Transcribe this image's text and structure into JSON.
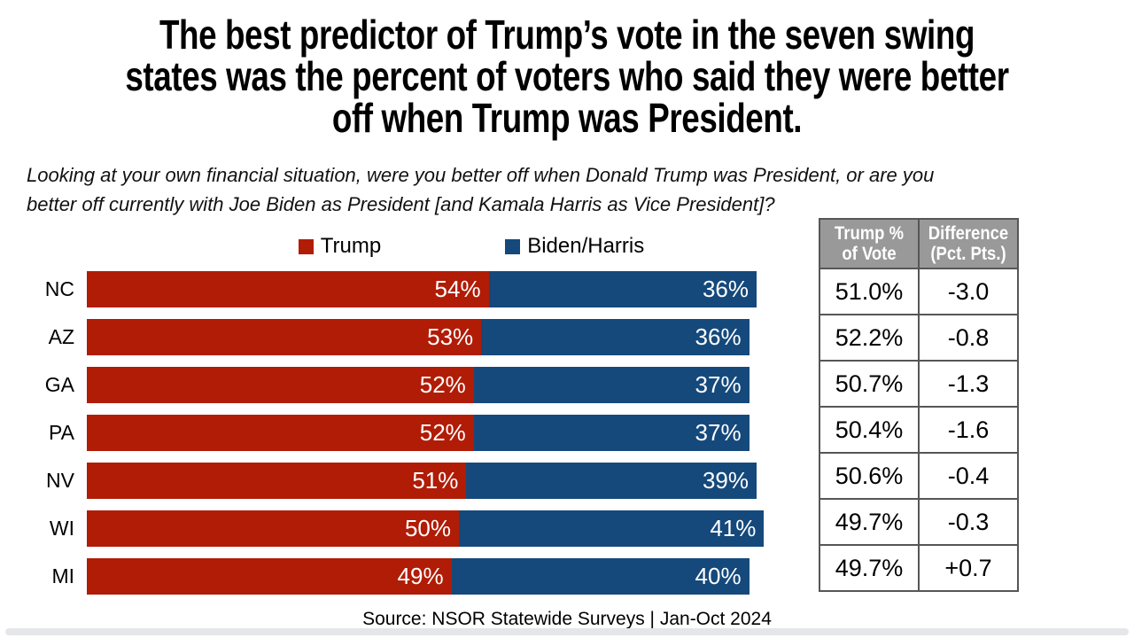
{
  "title_lines": [
    "The best predictor of Trump’s vote in the seven swing",
    "states was the percent of voters who said they were better",
    "off when Trump was President."
  ],
  "subtitle_lines": [
    "Looking at your own financial situation, were you better off when Donald Trump was President, or are you",
    "better off currently with Joe Biden as President [and Kamala Harris as Vice President]?"
  ],
  "legend": [
    {
      "label": "Trump",
      "color": "#B11C07"
    },
    {
      "label": "Biden/Harris",
      "color": "#15497B"
    }
  ],
  "chart_data": {
    "type": "bar",
    "orientation": "horizontal",
    "stacked": true,
    "categories": [
      "NC",
      "AZ",
      "GA",
      "PA",
      "NV",
      "WI",
      "MI"
    ],
    "series": [
      {
        "name": "Trump",
        "color": "#B11C07",
        "values": [
          54,
          53,
          52,
          52,
          51,
          50,
          49
        ]
      },
      {
        "name": "Biden/Harris",
        "color": "#15497B",
        "values": [
          36,
          36,
          37,
          37,
          39,
          41,
          40
        ]
      }
    ],
    "value_suffix": "%",
    "xlim": [
      0,
      100
    ],
    "grid": false,
    "legend_position": "top-center"
  },
  "table": {
    "headers": [
      [
        "Trump %",
        "of Vote"
      ],
      [
        "Difference",
        "(Pct. Pts.)"
      ]
    ],
    "rows": [
      [
        "51.0%",
        "-3.0"
      ],
      [
        "52.2%",
        "-0.8"
      ],
      [
        "50.7%",
        "-1.3"
      ],
      [
        "50.4%",
        "-1.6"
      ],
      [
        "50.6%",
        "-0.4"
      ],
      [
        "49.7%",
        "-0.3"
      ],
      [
        "49.7%",
        "+0.7"
      ]
    ]
  },
  "source": "Source: NSOR Statewide Surveys | Jan-Oct 2024",
  "colors": {
    "trump_red": "#B11C07",
    "biden_blue": "#15497B",
    "table_header_bg": "#999999",
    "table_border": "#565656",
    "background": "#ffffff"
  }
}
